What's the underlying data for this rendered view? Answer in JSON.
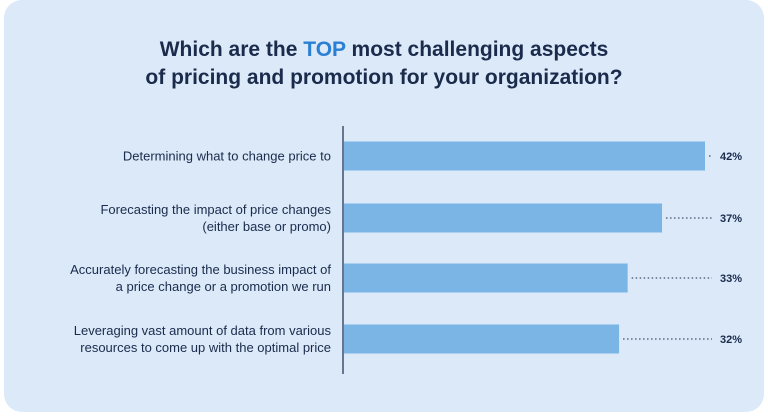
{
  "title": {
    "line1_pre": "Which are the ",
    "line1_highlight": "TOP",
    "line1_post": " most challenging aspects",
    "line2": "of pricing and promotion for your organization?"
  },
  "colors": {
    "background": "#dbe9f8",
    "bar": "#7ab5e6",
    "title": "#1a2b4c",
    "highlight": "#2a7fd4",
    "axis": "#1a2b4c"
  },
  "chart_data": {
    "type": "bar",
    "orientation": "horizontal",
    "categories": [
      [
        "Determining what to change price to"
      ],
      [
        "Forecasting the impact of price changes",
        "(either base or promo)"
      ],
      [
        "Accurately forecasting the business impact of",
        "a price change or a promotion we run"
      ],
      [
        "Leveraging vast amount of data from various",
        "resources to come up with the optimal price"
      ]
    ],
    "values": [
      42,
      37,
      33,
      32
    ],
    "value_labels": [
      "42%",
      "37%",
      "33%",
      "32%"
    ],
    "xlim": [
      0,
      42
    ],
    "grid": false,
    "legend": "none"
  }
}
